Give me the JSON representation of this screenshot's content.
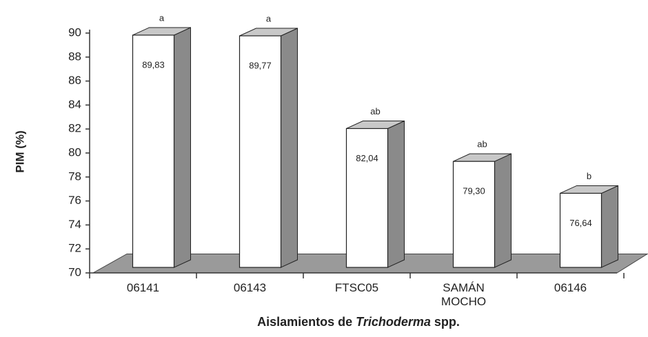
{
  "chart_data": {
    "type": "bar3d",
    "xlabel": [
      "Aislamientos de",
      "Trichoderma",
      "spp."
    ],
    "ylabel": "PIM (%)",
    "categories": [
      "06141",
      "06143",
      "FTSC05",
      "SAMÁN MOCHO",
      "06146"
    ],
    "values": [
      89.83,
      89.77,
      82.04,
      79.3,
      76.64
    ],
    "value_labels": [
      "89,83",
      "89,77",
      "82,04",
      "79,30",
      "76,64"
    ],
    "annotations": [
      "a",
      "a",
      "ab",
      "ab",
      "b"
    ],
    "color": "#ffffff",
    "ylim": [
      70,
      90
    ],
    "yticks": [
      70,
      72,
      74,
      76,
      78,
      80,
      82,
      84,
      86,
      88,
      90
    ]
  }
}
